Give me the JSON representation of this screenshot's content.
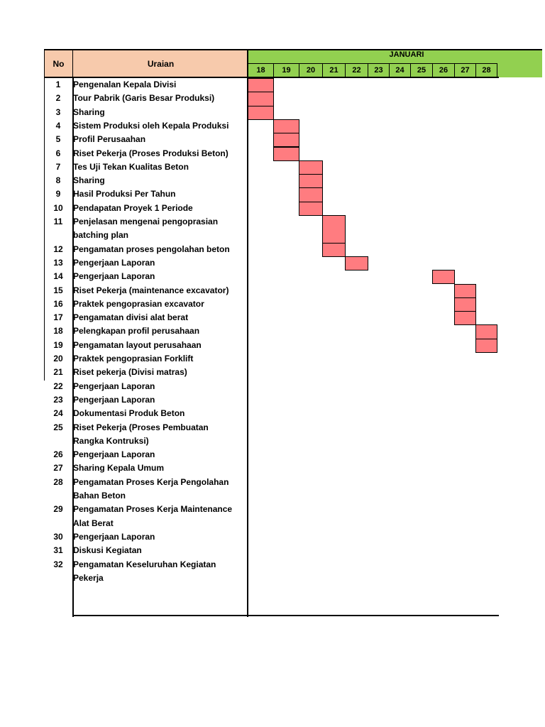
{
  "header": {
    "no_label": "No",
    "uraian_label": "Uraian",
    "month_label": "JANUARI",
    "days": [
      "18",
      "19",
      "20",
      "21",
      "22",
      "23",
      "24",
      "25",
      "26",
      "27",
      "28"
    ]
  },
  "rows": [
    {
      "no": "1",
      "lines": [
        "Pengenalan Kepala Divisi"
      ],
      "days": [
        "18"
      ]
    },
    {
      "no": "2",
      "lines": [
        "Tour Pabrik (Garis Besar Produksi)"
      ],
      "days": [
        "18"
      ]
    },
    {
      "no": "3",
      "lines": [
        "Sharing"
      ],
      "days": [
        "18"
      ]
    },
    {
      "no": "4",
      "lines": [
        "Sistem Produksi oleh Kepala Produksi"
      ],
      "days": [
        "19"
      ]
    },
    {
      "no": "5",
      "lines": [
        "Profil  Perusaahan"
      ],
      "days": [
        "19"
      ]
    },
    {
      "no": "6",
      "lines": [
        "Riset Pekerja (Proses Produksi Beton)"
      ],
      "days": [
        "19"
      ]
    },
    {
      "no": "7",
      "lines": [
        "Tes Uji Tekan Kualitas Beton"
      ],
      "days": [
        "20"
      ]
    },
    {
      "no": "8",
      "lines": [
        "Sharing"
      ],
      "days": [
        "20"
      ]
    },
    {
      "no": "9",
      "lines": [
        "Hasil Produksi Per Tahun"
      ],
      "days": [
        "20"
      ]
    },
    {
      "no": "10",
      "lines": [
        "Pendapatan Proyek 1 Periode"
      ],
      "days": [
        "20"
      ]
    },
    {
      "no": "11",
      "lines": [
        "Penjelasan mengenai pengoprasian",
        "batching plan"
      ],
      "days": [
        "21"
      ]
    },
    {
      "no": "12",
      "lines": [
        "Pengamatan proses pengolahan beton"
      ],
      "days": [
        "21"
      ]
    },
    {
      "no": "13",
      "lines": [
        "Pengerjaan Laporan"
      ],
      "days": [
        "22"
      ]
    },
    {
      "no": "14",
      "lines": [
        "Pengerjaan Laporan"
      ],
      "days": [
        "26"
      ]
    },
    {
      "no": "15",
      "lines": [
        "Riset Pekerja (maintenance excavator)"
      ],
      "days": [
        "27"
      ]
    },
    {
      "no": "16",
      "lines": [
        "Praktek pengoprasian excavator"
      ],
      "days": [
        "27"
      ]
    },
    {
      "no": "17",
      "lines": [
        "Pengamatan divisi alat berat"
      ],
      "days": [
        "27"
      ]
    },
    {
      "no": "18",
      "lines": [
        "Pelengkapan profil perusahaan"
      ],
      "days": [
        "28"
      ]
    },
    {
      "no": "19",
      "lines": [
        "Pengamatan layout perusahaan"
      ],
      "days": [
        "28"
      ]
    },
    {
      "no": "20",
      "lines": [
        "Praktek pengoprasian Forklift"
      ],
      "days": []
    },
    {
      "no": "21",
      "lines": [
        "Riset pekerja (Divisi matras)"
      ],
      "days": []
    },
    {
      "no": "22",
      "lines": [
        "Pengerjaan Laporan"
      ],
      "days": []
    },
    {
      "no": "23",
      "lines": [
        "Pengerjaan Laporan"
      ],
      "days": []
    },
    {
      "no": "24",
      "lines": [
        "Dokumentasi Produk Beton"
      ],
      "days": []
    },
    {
      "no": "25",
      "lines": [
        "Riset Pekerja (Proses Pembuatan",
        "Rangka Kontruksi)"
      ],
      "days": []
    },
    {
      "no": "26",
      "lines": [
        "Pengerjaan Laporan"
      ],
      "days": []
    },
    {
      "no": "27",
      "lines": [
        "Sharing Kepala Umum"
      ],
      "days": []
    },
    {
      "no": "28",
      "lines": [
        "Pengamatan Proses Kerja Pengolahan",
        "Bahan Beton"
      ],
      "days": []
    },
    {
      "no": "29",
      "lines": [
        "Pengamatan Proses Kerja Maintenance",
        "Alat Berat"
      ],
      "days": []
    },
    {
      "no": "30",
      "lines": [
        "Pengerjaan Laporan"
      ],
      "days": []
    },
    {
      "no": "31",
      "lines": [
        "Diskusi Kegiatan"
      ],
      "days": []
    },
    {
      "no": "32",
      "lines": [
        "Pengamatan Keseluruhan Kegiatan",
        "Pekerja"
      ],
      "days": []
    }
  ],
  "colors": {
    "header_label_bg": "#f7caac",
    "header_month_bg": "#92d050",
    "bar_fill": "#ff7c80"
  }
}
